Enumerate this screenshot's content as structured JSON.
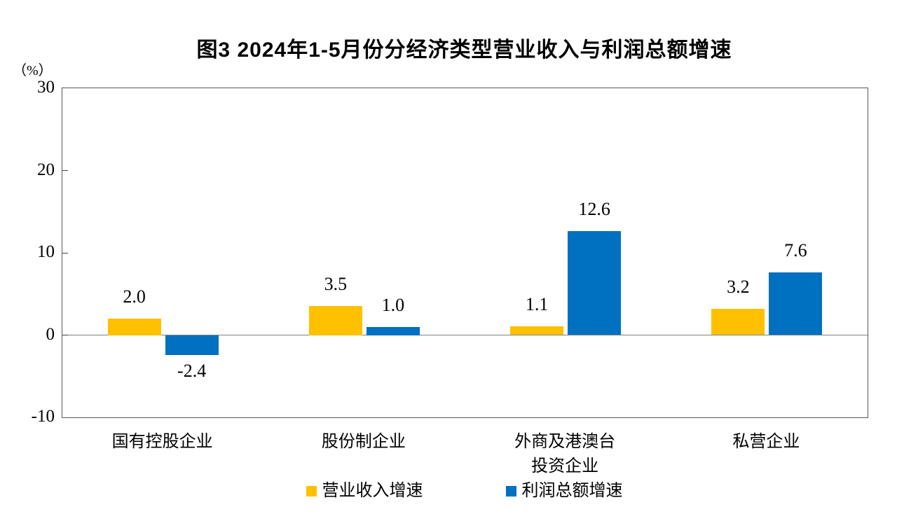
{
  "chart": {
    "title": "图3  2024年1-5月份分经济类型营业收入与利润总额增速",
    "unit_label": "（%）"
  },
  "chart_data": {
    "type": "bar",
    "title": "图3  2024年1-5月份分经济类型营业收入与利润总额增速",
    "unit": "%",
    "categories": [
      "国有控股企业",
      "股份制企业",
      "外商及港澳台投资企业",
      "私营企业"
    ],
    "category_display_lines": [
      [
        "国有控股企业"
      ],
      [
        "股份制企业"
      ],
      [
        "外商及港澳台",
        "投资企业"
      ],
      [
        "私营企业"
      ]
    ],
    "series": [
      {
        "name": "营业收入增速",
        "color": "#FFC000",
        "values": [
          2.0,
          3.5,
          1.1,
          3.2
        ]
      },
      {
        "name": "利润总额增速",
        "color": "#0070C0",
        "values": [
          -2.4,
          1.0,
          12.6,
          7.6
        ]
      }
    ],
    "value_label_decimals": 1,
    "ylim": [
      -10,
      30
    ],
    "y_ticks": [
      30,
      20,
      10,
      0,
      -10
    ],
    "grid": false,
    "zero_line": true,
    "legend_position": "bottom",
    "colors": {
      "bar_revenue": "#FFC000",
      "bar_profit": "#0070C0",
      "plot_border": "#595959",
      "zero_line": "#808080",
      "text": "#000000"
    }
  }
}
